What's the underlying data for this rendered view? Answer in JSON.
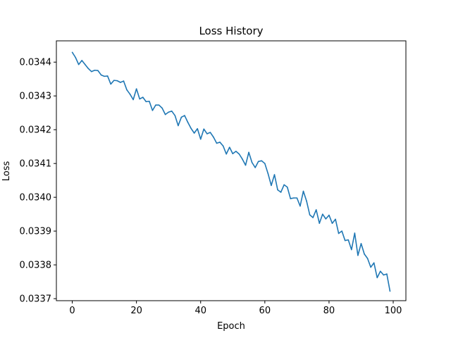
{
  "chart_data": {
    "type": "line",
    "title": "Loss History",
    "xlabel": "Epoch",
    "ylabel": "Loss",
    "xlim": [
      -4.95,
      103.95
    ],
    "ylim": [
      0.033694,
      0.034463
    ],
    "grid": false,
    "legend": "none",
    "xticks": [
      0,
      20,
      40,
      60,
      80,
      100
    ],
    "yticks": [
      0.0337,
      0.0338,
      0.0339,
      0.034,
      0.0341,
      0.0342,
      0.0343,
      0.0344
    ],
    "ytick_labels": [
      "0.0337",
      "0.0338",
      "0.0339",
      "0.0340",
      "0.0341",
      "0.0342",
      "0.0343",
      "0.0344"
    ],
    "series": [
      {
        "color": "#1f77b4",
        "x": [
          0,
          1,
          2,
          3,
          4,
          5,
          6,
          7,
          8,
          9,
          10,
          11,
          12,
          13,
          14,
          15,
          16,
          17,
          18,
          19,
          20,
          21,
          22,
          23,
          24,
          25,
          26,
          27,
          28,
          29,
          30,
          31,
          32,
          33,
          34,
          35,
          36,
          37,
          38,
          39,
          40,
          41,
          42,
          43,
          44,
          45,
          46,
          47,
          48,
          49,
          50,
          51,
          52,
          53,
          54,
          55,
          56,
          57,
          58,
          59,
          60,
          61,
          62,
          63,
          64,
          65,
          66,
          67,
          68,
          69,
          70,
          71,
          72,
          73,
          74,
          75,
          76,
          77,
          78,
          79,
          80,
          81,
          82,
          83,
          84,
          85,
          86,
          87,
          88,
          89,
          90,
          91,
          92,
          93,
          94,
          95,
          96,
          97,
          98,
          99
        ],
        "y": [
          0.034429,
          0.034414,
          0.034393,
          0.034405,
          0.034393,
          0.034381,
          0.034372,
          0.034376,
          0.034375,
          0.034362,
          0.034358,
          0.034359,
          0.034335,
          0.034346,
          0.034345,
          0.03434,
          0.034344,
          0.034318,
          0.034305,
          0.034289,
          0.034321,
          0.034291,
          0.034296,
          0.034283,
          0.034284,
          0.034257,
          0.034273,
          0.034273,
          0.034264,
          0.034245,
          0.034252,
          0.034255,
          0.034242,
          0.034212,
          0.034237,
          0.034242,
          0.034222,
          0.034204,
          0.03419,
          0.034203,
          0.034172,
          0.034202,
          0.034188,
          0.034192,
          0.034178,
          0.03416,
          0.034163,
          0.034152,
          0.034128,
          0.034148,
          0.034129,
          0.034136,
          0.034128,
          0.034113,
          0.034095,
          0.034133,
          0.034103,
          0.034088,
          0.034106,
          0.034108,
          0.0341,
          0.03407,
          0.034035,
          0.034067,
          0.034022,
          0.034015,
          0.034037,
          0.03403,
          0.033996,
          0.033998,
          0.033998,
          0.033974,
          0.034018,
          0.033989,
          0.033948,
          0.03394,
          0.033963,
          0.033923,
          0.03395,
          0.033936,
          0.033947,
          0.033923,
          0.033935,
          0.033893,
          0.0339,
          0.033872,
          0.033874,
          0.033845,
          0.033894,
          0.033828,
          0.033863,
          0.033832,
          0.033819,
          0.033793,
          0.033806,
          0.033762,
          0.033781,
          0.03377,
          0.033773,
          0.033722
        ]
      }
    ]
  }
}
